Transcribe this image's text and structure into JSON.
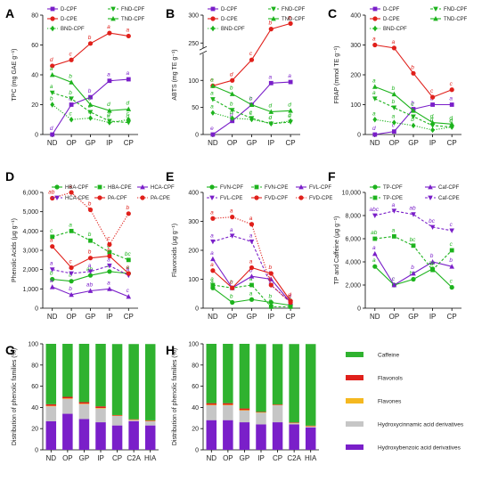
{
  "chart_data": [
    {
      "panel": "A",
      "type": "line",
      "categories": [
        "ND",
        "OP",
        "GP",
        "IP",
        "CP"
      ],
      "ylabel": "TPC (mg GAE g⁻¹)",
      "ylim": [
        0,
        80
      ],
      "yticks": [
        0,
        20,
        40,
        60,
        80
      ],
      "series": [
        {
          "name": "D-CPF",
          "color": "#7a1fc9",
          "dash": "solid",
          "marker": "square",
          "values": [
            0,
            20,
            25,
            36,
            37
          ],
          "labels": [
            "d",
            "b",
            "b",
            "a",
            "a"
          ]
        },
        {
          "name": "FND-CPF",
          "color": "#1db31d",
          "dash": "dashed",
          "marker": "tri-down",
          "values": [
            28,
            24,
            15,
            9,
            8
          ],
          "labels": [
            "a",
            "b",
            "c",
            "d",
            "d"
          ]
        },
        {
          "name": "D-CPE",
          "color": "#e0201b",
          "dash": "solid",
          "marker": "circle",
          "values": [
            46,
            50,
            61,
            68,
            66
          ],
          "labels": [
            "d",
            "c",
            "b",
            "a",
            "a"
          ]
        },
        {
          "name": "TND-CPF",
          "color": "#1db31d",
          "dash": "solid",
          "marker": "tri-up",
          "values": [
            40,
            35,
            20,
            16,
            17
          ],
          "labels": [
            "a",
            "b",
            "c",
            "d",
            "d"
          ]
        },
        {
          "name": "BND-CPF",
          "color": "#1db31d",
          "dash": "dotted",
          "marker": "diamond",
          "values": [
            20,
            10,
            11,
            8,
            10
          ],
          "labels": [
            "b",
            "c",
            "c",
            "c",
            "c"
          ]
        }
      ]
    },
    {
      "panel": "B",
      "type": "line",
      "categories": [
        "ND",
        "OP",
        "GP",
        "IP",
        "CP"
      ],
      "ylabel": "ABTS (mg TE g⁻¹)",
      "ylim": [
        0,
        300
      ],
      "yticks": [
        0,
        50,
        100,
        250,
        300
      ],
      "axis_break": [
        150,
        240
      ],
      "series": [
        {
          "name": "D-CPF",
          "color": "#7a1fc9",
          "dash": "solid",
          "marker": "square",
          "values": [
            0,
            25,
            55,
            95,
            97
          ],
          "labels": [
            "e",
            "d",
            "b",
            "a",
            "a"
          ]
        },
        {
          "name": "FND-CPF",
          "color": "#1db31d",
          "dash": "dashed",
          "marker": "tri-down",
          "values": [
            65,
            45,
            30,
            20,
            23
          ],
          "labels": [
            "a",
            "b",
            "c",
            "d",
            "d"
          ]
        },
        {
          "name": "D-CPE",
          "color": "#e0201b",
          "dash": "solid",
          "marker": "circle",
          "values": [
            90,
            100,
            138,
            275,
            285
          ],
          "labels": [
            "e",
            "d",
            "c",
            "b",
            "a"
          ]
        },
        {
          "name": "TND-CPF",
          "color": "#1db31d",
          "dash": "solid",
          "marker": "tri-up",
          "values": [
            90,
            75,
            55,
            42,
            44
          ],
          "labels": [
            "a",
            "b",
            "c",
            "d",
            "d"
          ]
        },
        {
          "name": "BND-CPF",
          "color": "#1db31d",
          "dash": "dotted",
          "marker": "diamond",
          "values": [
            40,
            30,
            28,
            20,
            25
          ],
          "labels": [
            "a",
            "b",
            "c",
            "c",
            "c"
          ]
        }
      ]
    },
    {
      "panel": "C",
      "type": "line",
      "categories": [
        "ND",
        "OP",
        "GP",
        "IP",
        "CP"
      ],
      "ylabel": "FRAP (mmol TE g⁻¹)",
      "ylim": [
        0,
        400
      ],
      "yticks": [
        0,
        100,
        200,
        300,
        400
      ],
      "series": [
        {
          "name": "D-CPF",
          "color": "#7a1fc9",
          "dash": "solid",
          "marker": "square",
          "values": [
            0,
            10,
            85,
            100,
            100
          ],
          "labels": [
            "d",
            "c",
            "b",
            "a",
            "a"
          ]
        },
        {
          "name": "FND-CPF",
          "color": "#1db31d",
          "dash": "dashed",
          "marker": "tri-down",
          "values": [
            120,
            90,
            60,
            30,
            25
          ],
          "labels": [
            "a",
            "b",
            "c",
            "d",
            "d"
          ]
        },
        {
          "name": "D-CPE",
          "color": "#e0201b",
          "dash": "solid",
          "marker": "circle",
          "values": [
            300,
            290,
            205,
            125,
            150
          ],
          "labels": [
            "a",
            "a",
            "b",
            "c",
            "c"
          ]
        },
        {
          "name": "TND-CPF",
          "color": "#1db31d",
          "dash": "solid",
          "marker": "tri-up",
          "values": [
            160,
            135,
            80,
            40,
            35
          ],
          "labels": [
            "a",
            "b",
            "c",
            "d",
            "d"
          ]
        },
        {
          "name": "BND-CPF",
          "color": "#1db31d",
          "dash": "dotted",
          "marker": "diamond",
          "values": [
            50,
            40,
            30,
            15,
            25
          ],
          "labels": [
            "a",
            "a",
            "b",
            "c",
            "c"
          ]
        }
      ]
    },
    {
      "panel": "D",
      "type": "line",
      "categories": [
        "ND",
        "OP",
        "GP",
        "IP",
        "CP"
      ],
      "ylabel": "Phenolic Acids (μg g⁻¹)",
      "ylim": [
        0,
        6000
      ],
      "yticks": [
        0,
        1000,
        2000,
        3000,
        4000,
        5000,
        6000
      ],
      "series": [
        {
          "name": "HBA-CPF",
          "color": "#1db31d",
          "dash": "solid",
          "marker": "circle",
          "values": [
            1500,
            1400,
            1700,
            1900,
            1800
          ],
          "labels": [
            "b",
            "b",
            "ab",
            "a",
            "a"
          ]
        },
        {
          "name": "HBA-CPE",
          "color": "#1db31d",
          "dash": "dashed",
          "marker": "square",
          "values": [
            3700,
            4000,
            3500,
            2900,
            2500
          ],
          "labels": [
            "c",
            "a",
            "b",
            "c",
            "bc"
          ]
        },
        {
          "name": "HCA-CPF",
          "color": "#7a1fc9",
          "dash": "solid",
          "marker": "tri-up",
          "values": [
            1100,
            700,
            900,
            1000,
            600
          ],
          "labels": [
            "a",
            "b",
            "ab",
            "a",
            "c"
          ]
        },
        {
          "name": "HCA-CPE",
          "color": "#7a1fc9",
          "dash": "dashed",
          "marker": "tri-down",
          "values": [
            2000,
            1800,
            1900,
            2200,
            1700
          ],
          "labels": [
            "a",
            "a",
            "a",
            "a",
            "a"
          ]
        },
        {
          "name": "PA-CPF",
          "color": "#e0201b",
          "dash": "solid",
          "marker": "circle",
          "values": [
            3200,
            2100,
            2600,
            2700,
            1800
          ],
          "labels": [
            "a",
            "c",
            "b",
            "b",
            "c"
          ]
        },
        {
          "name": "PA-CPE",
          "color": "#e0201b",
          "dash": "dotted",
          "marker": "circle",
          "values": [
            5700,
            6000,
            5100,
            3300,
            4900
          ],
          "labels": [
            "ab",
            "a",
            "b",
            "c",
            "b"
          ]
        }
      ]
    },
    {
      "panel": "E",
      "type": "line",
      "categories": [
        "ND",
        "OP",
        "GP",
        "IP",
        "CP"
      ],
      "ylabel": "Flavonoids (μg g⁻¹)",
      "ylim": [
        0,
        400
      ],
      "yticks": [
        0,
        100,
        200,
        300,
        400
      ],
      "series": [
        {
          "name": "FVN-CPF",
          "color": "#1db31d",
          "dash": "solid",
          "marker": "circle",
          "values": [
            70,
            20,
            30,
            20,
            10
          ],
          "labels": [
            "a",
            "b",
            "a",
            "b",
            "c"
          ]
        },
        {
          "name": "FVN-CPE",
          "color": "#1db31d",
          "dash": "dashed",
          "marker": "square",
          "values": [
            80,
            70,
            80,
            5,
            5
          ],
          "labels": [
            "a",
            "b",
            "a",
            "c",
            "c"
          ]
        },
        {
          "name": "FVL-CPF",
          "color": "#7a1fc9",
          "dash": "solid",
          "marker": "tri-up",
          "values": [
            170,
            70,
            110,
            100,
            20
          ],
          "labels": [
            "a",
            "c",
            "b",
            "b",
            "d"
          ]
        },
        {
          "name": "FVL-CPE",
          "color": "#7a1fc9",
          "dash": "dashed",
          "marker": "tri-down",
          "values": [
            230,
            250,
            230,
            80,
            20
          ],
          "labels": [
            "a",
            "a",
            "a",
            "b",
            "c"
          ]
        },
        {
          "name": "FVD-CPF",
          "color": "#e0201b",
          "dash": "solid",
          "marker": "circle",
          "values": [
            130,
            70,
            140,
            120,
            25
          ],
          "labels": [
            "a",
            "c",
            "a",
            "b",
            "d"
          ]
        },
        {
          "name": "FVD-CPE",
          "color": "#e0201b",
          "dash": "dotted",
          "marker": "circle",
          "values": [
            310,
            315,
            290,
            80,
            20
          ],
          "labels": [
            "a",
            "a",
            "a",
            "b",
            "c"
          ]
        }
      ]
    },
    {
      "panel": "F",
      "type": "line",
      "categories": [
        "ND",
        "OP",
        "GP",
        "IP",
        "CP"
      ],
      "ylabel": "TP and Caffeine (μg g⁻¹)",
      "ylim": [
        0,
        10000
      ],
      "yticks": [
        0,
        2000,
        4000,
        6000,
        8000,
        10000
      ],
      "series": [
        {
          "name": "TP-CPF",
          "color": "#1db31d",
          "dash": "solid",
          "marker": "circle",
          "values": [
            3600,
            2000,
            2500,
            3400,
            1800
          ],
          "labels": [
            "a",
            "c",
            "bc",
            "ab",
            "c"
          ]
        },
        {
          "name": "Caf-CPF",
          "color": "#7a1fc9",
          "dash": "solid",
          "marker": "tri-up",
          "values": [
            4700,
            2000,
            3000,
            4000,
            3600
          ],
          "labels": [
            "a",
            "c",
            "b",
            "b",
            "b"
          ]
        },
        {
          "name": "TP-CPE",
          "color": "#1db31d",
          "dash": "dashed",
          "marker": "square",
          "values": [
            6000,
            6200,
            5400,
            3300,
            5000
          ],
          "labels": [
            "ab",
            "a",
            "bc",
            "d",
            "c"
          ]
        },
        {
          "name": "Caf-CPE",
          "color": "#7a1fc9",
          "dash": "dashed",
          "marker": "tri-down",
          "values": [
            8000,
            8400,
            8100,
            7000,
            6700
          ],
          "labels": [
            "abc",
            "a",
            "ab",
            "bc",
            "c"
          ]
        }
      ]
    },
    {
      "panel": "G",
      "type": "stacked-bar",
      "categories": [
        "ND",
        "OP",
        "GP",
        "IP",
        "CP",
        "C2A",
        "HIA"
      ],
      "ylabel": "Distribution of phenolic families (%)",
      "ylim": [
        0,
        100
      ],
      "yticks": [
        0,
        20,
        40,
        60,
        80,
        100
      ],
      "series": [
        {
          "name": "Hydroxybenzoic acid derivatives",
          "color": "#7a1fc9",
          "values": [
            27,
            34,
            29,
            26,
            23,
            27,
            23
          ]
        },
        {
          "name": "Hydroxycinnamic acid derivatives",
          "color": "#c6c6c6",
          "values": [
            14,
            14,
            14,
            13,
            9,
            1,
            4
          ]
        },
        {
          "name": "Flavones",
          "color": "#f5b820",
          "values": [
            0.5,
            0.5,
            0.5,
            0.5,
            0.3,
            0.3,
            0.3
          ]
        },
        {
          "name": "Flavonols",
          "color": "#e0201b",
          "values": [
            1.5,
            1.5,
            1.5,
            1.5,
            0.5,
            0.5,
            0.5
          ]
        },
        {
          "name": "Caffeine",
          "color": "#2fb22f",
          "values": [
            57,
            50,
            55,
            59,
            67,
            71,
            72
          ]
        }
      ]
    },
    {
      "panel": "H",
      "type": "stacked-bar",
      "categories": [
        "ND",
        "OP",
        "GP",
        "IP",
        "CP",
        "C2A",
        "HIA"
      ],
      "ylabel": "Distribution of phenolic families (%)",
      "ylim": [
        0,
        100
      ],
      "yticks": [
        0,
        20,
        40,
        60,
        80,
        100
      ],
      "series": [
        {
          "name": "Hydroxybenzoic acid derivatives",
          "color": "#7a1fc9",
          "values": [
            28,
            28,
            26,
            24,
            26,
            24,
            21
          ]
        },
        {
          "name": "Hydroxycinnamic acid derivatives",
          "color": "#c6c6c6",
          "values": [
            14,
            14,
            11,
            11,
            16,
            1,
            1
          ]
        },
        {
          "name": "Flavones",
          "color": "#f5b820",
          "values": [
            0.5,
            0.5,
            0.5,
            0.3,
            0.3,
            0.3,
            0.3
          ]
        },
        {
          "name": "Flavonols",
          "color": "#e0201b",
          "values": [
            1.5,
            1.5,
            1.5,
            0.5,
            0.5,
            0.5,
            0.5
          ]
        },
        {
          "name": "Caffeine",
          "color": "#2fb22f",
          "values": [
            56,
            56,
            61,
            64,
            57,
            74,
            77
          ]
        }
      ]
    }
  ],
  "shared_legend": [
    {
      "name": "Caffeine",
      "color": "#2fb22f"
    },
    {
      "name": "Flavonols",
      "color": "#e0201b"
    },
    {
      "name": "Flavones",
      "color": "#f5b820"
    },
    {
      "name": "Hydroxycinnamic acid derivatives",
      "color": "#c6c6c6"
    },
    {
      "name": "Hydroxybenzoic acid derivatives",
      "color": "#7a1fc9"
    }
  ]
}
